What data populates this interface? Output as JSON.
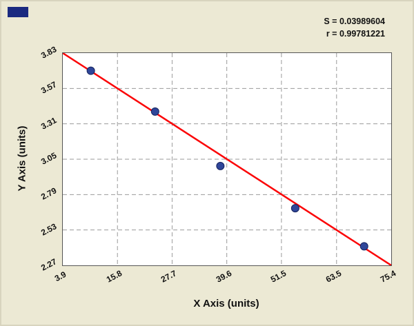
{
  "stats": {
    "s_label": "S = 0.03989604",
    "r_label": "r = 0.99781221"
  },
  "chart_data": {
    "type": "scatter",
    "title": "",
    "xlabel": "X Axis (units)",
    "ylabel": "Y Axis (units)",
    "x": [
      10.0,
      24.0,
      38.2,
      54.5,
      69.5
    ],
    "y": [
      3.7,
      3.4,
      3.0,
      2.69,
      2.41
    ],
    "fit_line": {
      "x1": 3.9,
      "y1": 3.83,
      "x2": 75.4,
      "y2": 2.27
    },
    "x_ticks": [
      3.9,
      15.8,
      27.7,
      39.6,
      51.5,
      63.5,
      75.4
    ],
    "y_ticks": [
      2.27,
      2.53,
      2.79,
      3.05,
      3.31,
      3.57,
      3.83
    ],
    "xlim": [
      3.9,
      75.4
    ],
    "ylim": [
      2.27,
      3.83
    ],
    "grid": true,
    "legend": "none",
    "annotations": [
      "S = 0.03989604",
      "r = 0.99781221"
    ],
    "point_color": "#2f4699",
    "point_edge_color": "#16235e",
    "line_color": "#fb0406"
  }
}
